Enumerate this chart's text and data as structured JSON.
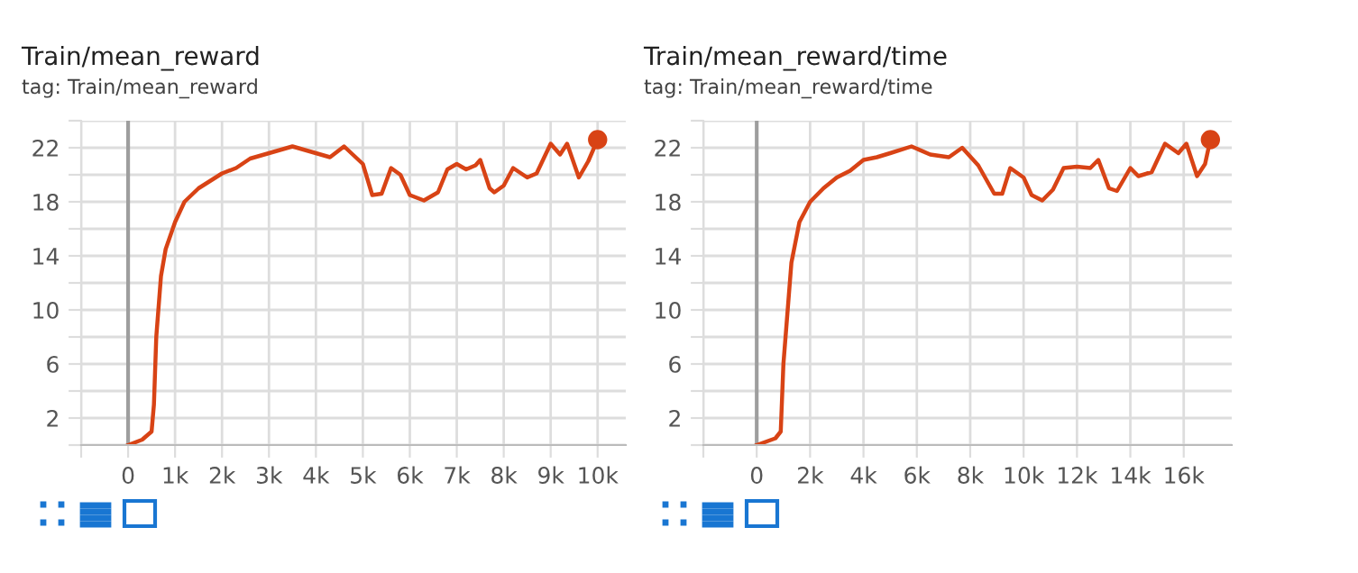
{
  "chart_data": [
    {
      "type": "line",
      "title": "Train/mean_reward",
      "subtitle": "tag: Train/mean_reward",
      "grid": true,
      "legend": false,
      "xlim": [
        -1000,
        10600
      ],
      "xticks": [
        {
          "value": -1000,
          "label": null
        },
        0,
        {
          "value": 1000,
          "label": "1k"
        },
        {
          "value": 2000,
          "label": "2k"
        },
        {
          "value": 3000,
          "label": "3k"
        },
        {
          "value": 4000,
          "label": "4k"
        },
        {
          "value": 5000,
          "label": "5k"
        },
        {
          "value": 6000,
          "label": "6k"
        },
        {
          "value": 7000,
          "label": "7k"
        },
        {
          "value": 8000,
          "label": "8k"
        },
        {
          "value": 9000,
          "label": "9k"
        },
        {
          "value": 10000,
          "label": "10k"
        }
      ],
      "ylim": [
        0,
        24
      ],
      "yticks": [
        {
          "value": 0,
          "label": null
        },
        2,
        {
          "value": 4,
          "label": null
        },
        6,
        {
          "value": 8,
          "label": null
        },
        10,
        {
          "value": 12,
          "label": null
        },
        14,
        {
          "value": 16,
          "label": null
        },
        18,
        {
          "value": 20,
          "label": null
        },
        22,
        {
          "value": 24,
          "label": null
        }
      ],
      "ref_lines": [
        {
          "axis": "x",
          "value": 0,
          "color": "#9e9e9e"
        }
      ],
      "series": [
        {
          "color": "#d84315",
          "x": [
            0,
            300,
            500,
            550,
            600,
            700,
            800,
            1000,
            1200,
            1500,
            2000,
            2300,
            2600,
            3000,
            3500,
            4000,
            4300,
            4600,
            5000,
            5200,
            5400,
            5600,
            5800,
            6000,
            6300,
            6600,
            6800,
            7000,
            7200,
            7400,
            7500,
            7700,
            7800,
            8000,
            8200,
            8500,
            8700,
            9000,
            9200,
            9350,
            9600,
            9800,
            10000
          ],
          "values": [
            0,
            0.4,
            1,
            3,
            8,
            12.5,
            14.5,
            16.5,
            18,
            19,
            20.1,
            20.5,
            21.2,
            21.6,
            22.1,
            21.6,
            21.3,
            22.1,
            20.8,
            18.5,
            18.6,
            20.5,
            20,
            18.5,
            18.1,
            18.7,
            20.4,
            20.8,
            20.4,
            20.7,
            21.1,
            19,
            18.7,
            19.2,
            20.5,
            19.8,
            20.1,
            22.3,
            21.5,
            22.3,
            19.8,
            21,
            22.6
          ]
        },
        {
          "type": "scatter",
          "color": "#d84315",
          "x": [
            10000
          ],
          "values": [
            22.6
          ]
        }
      ]
    },
    {
      "type": "line",
      "title": "Train/mean_reward/time",
      "subtitle": "tag: Train/mean_reward/time",
      "grid": true,
      "legend": false,
      "xlim": [
        -2000,
        17800
      ],
      "xticks": [
        {
          "value": -2000,
          "label": null
        },
        0,
        {
          "value": 2000,
          "label": "2k"
        },
        {
          "value": 4000,
          "label": "4k"
        },
        {
          "value": 6000,
          "label": "6k"
        },
        {
          "value": 8000,
          "label": "8k"
        },
        {
          "value": 10000,
          "label": "10k"
        },
        {
          "value": 12000,
          "label": "12k"
        },
        {
          "value": 14000,
          "label": "14k"
        },
        {
          "value": 16000,
          "label": "16k"
        }
      ],
      "ylim": [
        0,
        24
      ],
      "yticks": [
        {
          "value": 0,
          "label": null
        },
        2,
        {
          "value": 4,
          "label": null
        },
        6,
        {
          "value": 8,
          "label": null
        },
        10,
        {
          "value": 12,
          "label": null
        },
        14,
        {
          "value": 16,
          "label": null
        },
        18,
        {
          "value": 20,
          "label": null
        },
        22,
        {
          "value": 24,
          "label": null
        }
      ],
      "ref_lines": [
        {
          "axis": "x",
          "value": 0,
          "color": "#9e9e9e"
        }
      ],
      "series": [
        {
          "color": "#d84315",
          "x": [
            0,
            700,
            900,
            1000,
            1200,
            1300,
            1600,
            2000,
            2500,
            3000,
            3500,
            4000,
            4500,
            5000,
            5800,
            6500,
            7200,
            7700,
            8300,
            8900,
            9200,
            9500,
            10000,
            10300,
            10700,
            11100,
            11500,
            12000,
            12500,
            12800,
            13200,
            13500,
            14000,
            14300,
            14800,
            15300,
            15800,
            16100,
            16500,
            16800,
            17000
          ],
          "values": [
            0,
            0.5,
            1,
            6,
            11,
            13.5,
            16.5,
            18,
            19,
            19.8,
            20.3,
            21.1,
            21.3,
            21.6,
            22.1,
            21.5,
            21.3,
            22,
            20.7,
            18.6,
            18.6,
            20.5,
            19.8,
            18.5,
            18.1,
            18.9,
            20.5,
            20.6,
            20.5,
            21.1,
            19,
            18.8,
            20.5,
            19.9,
            20.2,
            22.3,
            21.6,
            22.3,
            19.9,
            20.8,
            22.6
          ]
        },
        {
          "type": "scatter",
          "color": "#d84315",
          "x": [
            17000
          ],
          "values": [
            22.6
          ]
        }
      ]
    }
  ]
}
